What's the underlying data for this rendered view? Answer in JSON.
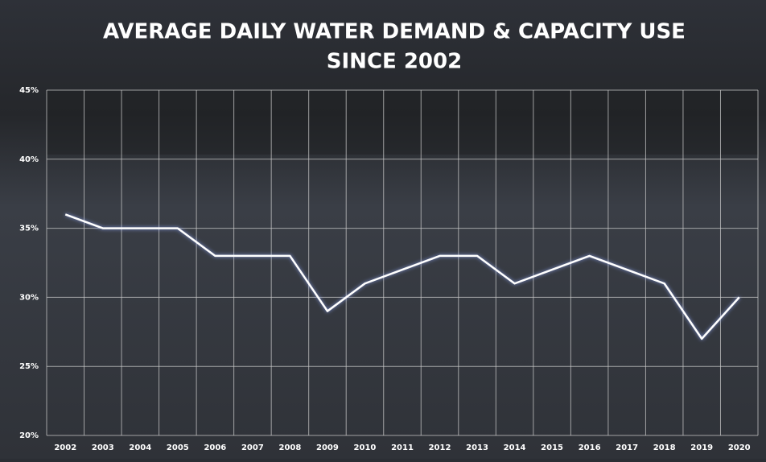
{
  "chart_data": {
    "type": "line",
    "title": [
      "AVERAGE DAILY WATER DEMAND & CAPACITY USE",
      "SINCE 2002"
    ],
    "categories": [
      "2002",
      "2003",
      "2004",
      "2005",
      "2006",
      "2007",
      "2008",
      "2009",
      "2010",
      "2011",
      "2012",
      "2013",
      "2014",
      "2015",
      "2016",
      "2017",
      "2018",
      "2019",
      "2020"
    ],
    "values": [
      36,
      35,
      35,
      35,
      33,
      33,
      33,
      29,
      31,
      32,
      33,
      33,
      31,
      32,
      33,
      32,
      31,
      27,
      30
    ],
    "color": "#ffffff",
    "ylim": [
      20,
      45
    ],
    "yticks": [
      {
        "value": 20,
        "label": "20%"
      },
      {
        "value": 25,
        "label": "25%"
      },
      {
        "value": 30,
        "label": "30%"
      },
      {
        "value": 35,
        "label": "35%"
      },
      {
        "value": 40,
        "label": "40%"
      },
      {
        "value": 45,
        "label": "45%"
      }
    ],
    "grid": true
  }
}
